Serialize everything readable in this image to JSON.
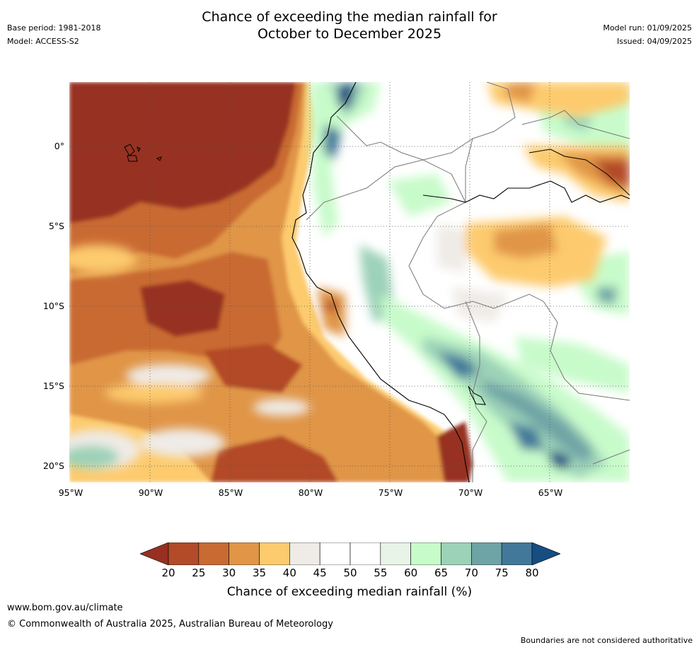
{
  "header": {
    "title_line1": "Chance of exceeding the median rainfall for",
    "title_line2": "October to December 2025",
    "base_period": "Base period: 1981-2018",
    "model": "Model: ACCESS-S2",
    "model_run": "Model run: 01/09/2025",
    "issued": "Issued: 04/09/2025"
  },
  "map": {
    "lat_labels": [
      "0°",
      "5°S",
      "10°S",
      "15°S",
      "20°S"
    ],
    "lon_labels": [
      "95°W",
      "90°W",
      "85°W",
      "80°W",
      "75°W",
      "70°W",
      "65°W"
    ]
  },
  "colorbar": {
    "ticks": [
      "20",
      "25",
      "30",
      "35",
      "40",
      "45",
      "50",
      "55",
      "60",
      "65",
      "70",
      "75",
      "80"
    ],
    "colors": [
      "#973020",
      "#b34a28",
      "#c96a33",
      "#e09547",
      "#fdcb6e",
      "#efebe7",
      "#ffffff",
      "#ffffff",
      "#e9f4e8",
      "#c8fbca",
      "#9cd2b8",
      "#6fa4a6",
      "#42799a",
      "#164d82"
    ],
    "label": "Chance of exceeding median rainfall (%)"
  },
  "footer": {
    "url": "www.bom.gov.au/climate",
    "copyright": "© Commonwealth of Australia 2025, Australian Bureau of Meteorology",
    "disclaimer": "Boundaries are not considered authoritative"
  }
}
